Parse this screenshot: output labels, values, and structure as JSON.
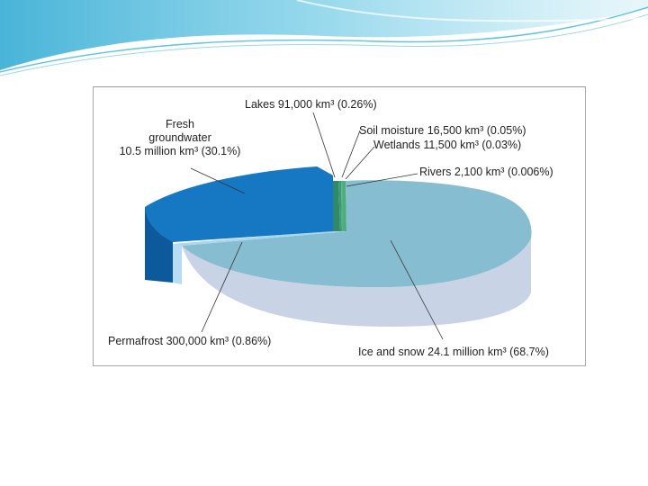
{
  "colors": {
    "fresh_groundwater": "#1677c2",
    "fresh_groundwater_side": "#0c5a9c",
    "ice_and_snow_top": "#87bdd0",
    "ice_and_snow_side": "#c9d3e6",
    "permafrost_top": "#a9d6ee",
    "permafrost_side": "#b6ddf3",
    "lakes": "#2f8a6c",
    "rivers": "#4caf7a",
    "accent_swoosh": "#3fb0d6"
  },
  "chart_data": {
    "type": "pie",
    "title": "",
    "slices": [
      {
        "id": "ice_and_snow",
        "label": "Ice and snow",
        "amount": "24.1 million km³",
        "percent_text": "(68.7%)",
        "value": 68.7
      },
      {
        "id": "fresh_groundwater",
        "label": "Fresh groundwater",
        "amount": "10.5 million km³",
        "percent_text": "(30.1%)",
        "value": 30.1
      },
      {
        "id": "permafrost",
        "label": "Permafrost",
        "amount": "300,000 km³",
        "percent_text": "(0.86%)",
        "value": 0.86
      },
      {
        "id": "lakes",
        "label": "Lakes",
        "amount": "91,000 km³",
        "percent_text": "(0.26%)",
        "value": 0.26
      },
      {
        "id": "soil_moisture",
        "label": "Soil moisture",
        "amount": "16,500 km³",
        "percent_text": "(0.05%)",
        "value": 0.05
      },
      {
        "id": "wetlands",
        "label": "Wetlands",
        "amount": "11,500 km³",
        "percent_text": "(0.03%)",
        "value": 0.03
      },
      {
        "id": "rivers",
        "label": "Rivers",
        "amount": "2,100 km³",
        "percent_text": "(0.006%)",
        "value": 0.006
      }
    ]
  },
  "labels": {
    "lakes": "Lakes  91,000 km³ (0.26%)",
    "fresh_line1": "Fresh",
    "fresh_line2": "groundwater",
    "fresh_line3": "10.5 million km³ (30.1%)",
    "soil_moisture": "Soil moisture  16,500 km³ (0.05%)",
    "wetlands": "Wetlands  11,500 km³ (0.03%)",
    "rivers": "Rivers  2,100 km³ (0.006%)",
    "permafrost": "Permafrost  300,000 km³ (0.86%)",
    "ice_and_snow": "Ice and snow  24.1 million km³ (68.7%)"
  }
}
